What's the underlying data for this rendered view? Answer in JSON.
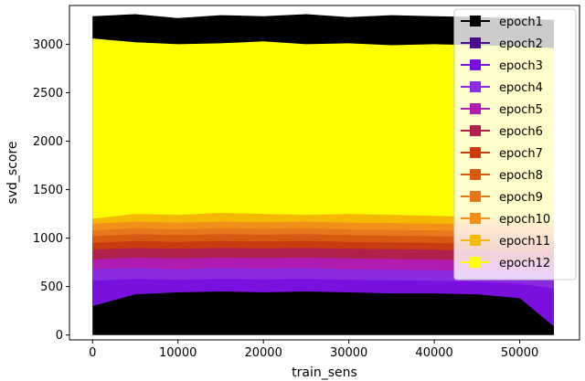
{
  "chart_data": {
    "type": "area",
    "xlabel": "train_sens",
    "ylabel": "svd_score",
    "xlim": [
      -2700,
      57000
    ],
    "ylim": [
      -50,
      3400
    ],
    "x_ticks": [
      0,
      10000,
      20000,
      30000,
      40000,
      50000
    ],
    "x_tick_labels": [
      "0",
      "10000",
      "20000",
      "30000",
      "40000",
      "50000"
    ],
    "y_ticks": [
      0,
      500,
      1000,
      1500,
      2000,
      2500,
      3000
    ],
    "y_tick_labels": [
      "0",
      "500",
      "1000",
      "1500",
      "2000",
      "2500",
      "3000"
    ],
    "grid": false,
    "legend_position": "upper-right",
    "x": [
      0,
      5000,
      10000,
      15000,
      20000,
      25000,
      30000,
      35000,
      40000,
      45000,
      50000,
      54000
    ],
    "series": [
      {
        "name": "epoch1",
        "color": "#000000",
        "upper": [
          3290,
          3310,
          3270,
          3300,
          3290,
          3310,
          3280,
          3300,
          3290,
          3280,
          3270,
          3250
        ],
        "lower": [
          0,
          0,
          0,
          0,
          0,
          0,
          0,
          0,
          0,
          0,
          0,
          0
        ]
      },
      {
        "name": "epoch2",
        "color": "#4b0c8a",
        "upper": [
          600,
          580,
          570,
          590,
          575,
          585,
          580,
          570,
          575,
          560,
          540,
          500
        ],
        "lower": [
          400,
          470,
          490,
          480,
          485,
          480,
          470,
          480,
          470,
          450,
          420,
          120
        ]
      },
      {
        "name": "epoch3",
        "color": "#7a10e0",
        "upper": [
          620,
          610,
          600,
          610,
          605,
          600,
          610,
          600,
          595,
          580,
          560,
          480
        ],
        "lower": [
          300,
          420,
          440,
          450,
          440,
          450,
          440,
          430,
          430,
          420,
          380,
          90
        ]
      },
      {
        "name": "epoch4",
        "color": "#8a2be2",
        "upper": [
          680,
          700,
          690,
          700,
          690,
          700,
          690,
          680,
          690,
          680,
          660,
          620
        ],
        "lower": [
          560,
          580,
          570,
          580,
          575,
          580,
          570,
          565,
          560,
          550,
          530,
          480
        ]
      },
      {
        "name": "epoch5",
        "color": "#b01bb0",
        "upper": [
          800,
          820,
          810,
          830,
          820,
          810,
          820,
          810,
          800,
          790,
          780,
          760
        ],
        "lower": [
          680,
          690,
          680,
          690,
          685,
          690,
          680,
          675,
          670,
          660,
          650,
          620
        ]
      },
      {
        "name": "epoch6",
        "color": "#b0204a",
        "upper": [
          900,
          930,
          920,
          940,
          930,
          920,
          930,
          920,
          910,
          900,
          880,
          860
        ],
        "lower": [
          780,
          800,
          790,
          800,
          795,
          800,
          790,
          785,
          780,
          770,
          760,
          740
        ]
      },
      {
        "name": "epoch7",
        "color": "#c83a10",
        "upper": [
          1000,
          1030,
          1020,
          1040,
          1030,
          1020,
          1030,
          1020,
          1010,
          1000,
          980,
          960
        ],
        "lower": [
          880,
          900,
          890,
          900,
          895,
          900,
          890,
          885,
          880,
          870,
          860,
          840
        ]
      },
      {
        "name": "epoch8",
        "color": "#d85a10",
        "upper": [
          1080,
          1110,
          1100,
          1120,
          1110,
          1100,
          1110,
          1100,
          1090,
          1080,
          1060,
          1040
        ],
        "lower": [
          950,
          970,
          960,
          970,
          965,
          970,
          960,
          955,
          950,
          940,
          930,
          910
        ]
      },
      {
        "name": "epoch9",
        "color": "#e8761a",
        "upper": [
          1180,
          1220,
          1200,
          1230,
          1220,
          1200,
          1210,
          1200,
          1190,
          1180,
          1160,
          1140
        ],
        "lower": [
          1020,
          1040,
          1030,
          1040,
          1035,
          1040,
          1030,
          1025,
          1020,
          1010,
          1000,
          980
        ]
      },
      {
        "name": "epoch10",
        "color": "#f29018",
        "upper": [
          1250,
          1300,
          1290,
          1310,
          1300,
          1290,
          1300,
          1290,
          1280,
          1270,
          1250,
          1230
        ],
        "lower": [
          1080,
          1100,
          1090,
          1100,
          1095,
          1100,
          1090,
          1085,
          1080,
          1070,
          1060,
          1040
        ]
      },
      {
        "name": "epoch11",
        "color": "#f5b800",
        "upper": [
          1300,
          1380,
          1370,
          1390,
          1380,
          1370,
          1380,
          1370,
          1360,
          1350,
          1330,
          1300
        ],
        "lower": [
          1150,
          1170,
          1160,
          1170,
          1165,
          1170,
          1160,
          1155,
          1150,
          1140,
          1130,
          1110
        ]
      },
      {
        "name": "epoch12",
        "color": "#ffff00",
        "upper": [
          3060,
          3020,
          3000,
          3010,
          3030,
          3000,
          3010,
          2990,
          3000,
          2990,
          2980,
          2960
        ],
        "lower": [
          1200,
          1250,
          1240,
          1260,
          1250,
          1240,
          1250,
          1240,
          1230,
          1220,
          1200,
          1180
        ]
      }
    ]
  }
}
